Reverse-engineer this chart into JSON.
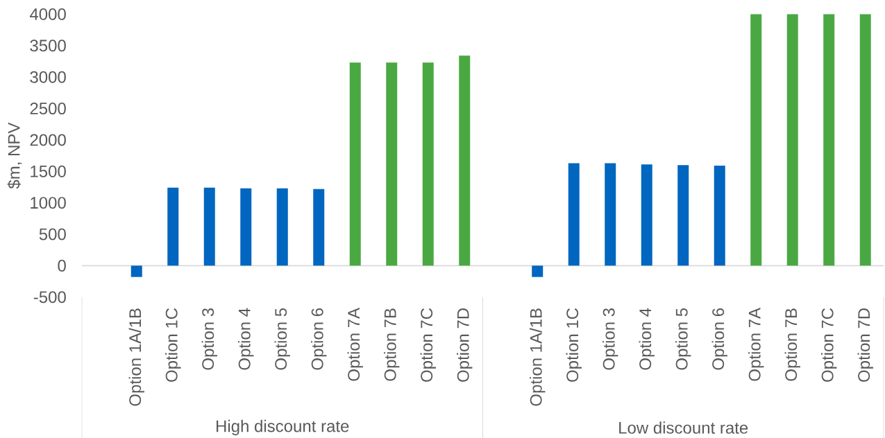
{
  "chart_data": {
    "type": "bar",
    "ylabel": "$m, NPV",
    "categories": [
      null,
      "Option 1A/1B",
      "Option 1C",
      "Option 3",
      "Option 4",
      "Option 5",
      "Option 6",
      "Option 7A",
      "Option 7B",
      "Option 7C",
      "Option 7D",
      null,
      "Option 1A/1B",
      "Option 1C",
      "Option 3",
      "Option 4",
      "Option 5",
      "Option 6",
      "Option 7A",
      "Option 7B",
      "Option 7C",
      "Option 7D"
    ],
    "values": [
      null,
      -180,
      1240,
      1240,
      1230,
      1230,
      1220,
      3230,
      3230,
      3230,
      3340,
      null,
      -180,
      1630,
      1630,
      1610,
      1600,
      1590,
      4000,
      4000,
      4000,
      4000
    ],
    "colors": [
      null,
      "#0066bf",
      "#0066bf",
      "#0066bf",
      "#0066bf",
      "#0066bf",
      "#0066bf",
      "#4aa843",
      "#4aa843",
      "#4aa843",
      "#4aa843",
      null,
      "#0066bf",
      "#0066bf",
      "#0066bf",
      "#0066bf",
      "#0066bf",
      "#0066bf",
      "#4aa843",
      "#4aa843",
      "#4aa843",
      "#4aa843"
    ],
    "ylim": [
      -500,
      4000
    ],
    "yticks": [
      -500,
      0,
      500,
      1000,
      1500,
      2000,
      2500,
      3000,
      3500,
      4000
    ],
    "annotations": [
      "High discount rate",
      "Low discount rate"
    ]
  }
}
